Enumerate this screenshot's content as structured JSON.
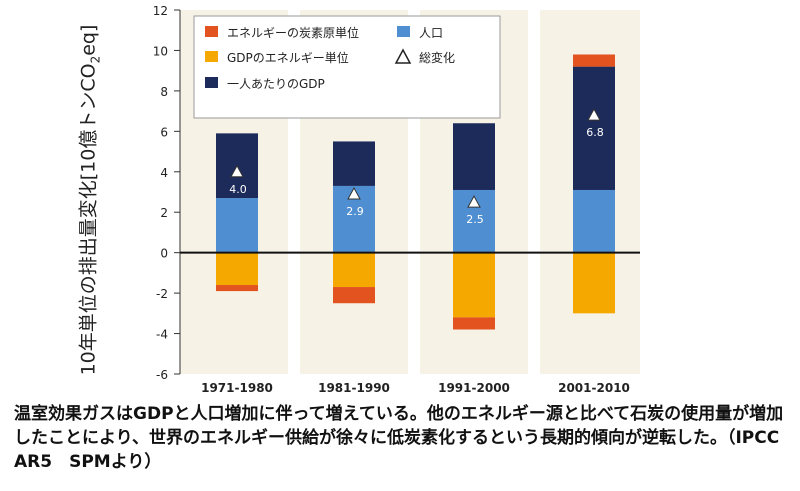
{
  "chart_data": {
    "type": "bar",
    "stacked": true,
    "categories": [
      "1971-1980",
      "1981-1990",
      "1991-2000",
      "2001-2010"
    ],
    "series": [
      {
        "name": "エネルギーの炭素原単位",
        "color": "#e2531f",
        "values": [
          -0.3,
          -0.8,
          -0.6,
          0.6
        ]
      },
      {
        "name": "GDPのエネルギー単位",
        "color": "#f5a800",
        "values": [
          -1.6,
          -1.7,
          -3.2,
          -3.0
        ]
      },
      {
        "name": "一人あたりのGDP",
        "color": "#1c2b5a",
        "values": [
          3.2,
          2.2,
          3.3,
          6.1
        ]
      },
      {
        "name": "人口",
        "color": "#4f8fd1",
        "values": [
          2.7,
          3.3,
          3.1,
          3.1
        ]
      }
    ],
    "total": {
      "name": "総変化",
      "values": [
        4.0,
        2.9,
        2.5,
        6.8
      ],
      "labels": [
        "4.0",
        "2.9",
        "2.5",
        "6.8"
      ]
    },
    "ylim": [
      -6,
      12
    ],
    "yticks": [
      "-6",
      "-4",
      "-2",
      "0",
      "2",
      "4",
      "6",
      "8",
      "10",
      "12"
    ],
    "ylabel_prefix": "10年単位の排出量変化[10億トンCO",
    "ylabel_sub": "2",
    "ylabel_suffix": "eq]",
    "legend_position": "top-left",
    "legend_order": [
      "エネルギーの炭素原単位",
      "人口",
      "GDPのエネルギー単位",
      "総変化",
      "一人あたりのGDP"
    ]
  },
  "caption": "温室効果ガスはGDPと人口増加に伴って増えている。他のエネルギー源と比べて石炭の使用量が増加したことにより、世界のエネルギー供給が徐々に低炭素化するという長期的傾向が逆転した。（IPCC　AR5　SPMより）"
}
